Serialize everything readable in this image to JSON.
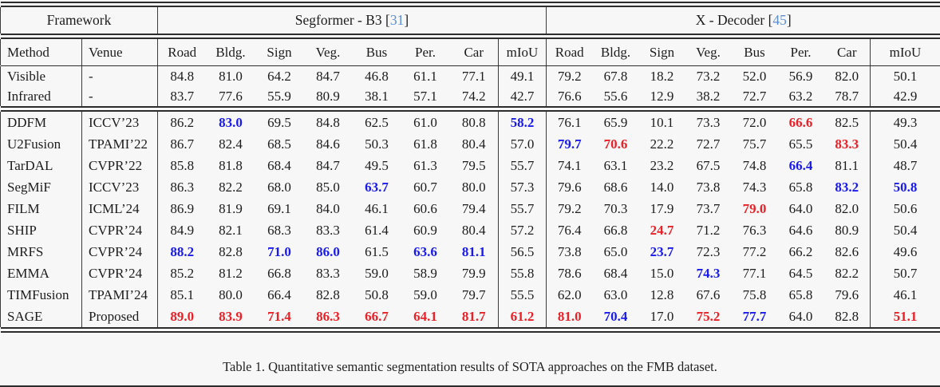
{
  "table": {
    "framework_label": "Framework",
    "sections": [
      {
        "name": "Segformer - B3",
        "cite": "31"
      },
      {
        "name": "X - Decoder",
        "cite": "45"
      }
    ],
    "columns": {
      "method": "Method",
      "venue": "Venue",
      "classes": [
        "Road",
        "Bldg.",
        "Sign",
        "Veg.",
        "Bus",
        "Per.",
        "Car"
      ],
      "miou": "mIoU"
    },
    "colors": {
      "best": "#ea2128",
      "second": "#1a1aee",
      "cite_link": "#5e8ed2"
    },
    "baseline_rows": [
      {
        "method": "Visible",
        "venue": "-",
        "seg": [
          "84.8",
          "81.0",
          "64.2",
          "84.7",
          "46.8",
          "61.1",
          "77.1"
        ],
        "seg_miou": "49.1",
        "xdec": [
          "79.2",
          "67.8",
          "18.2",
          "73.2",
          "52.0",
          "56.9",
          "82.0"
        ],
        "xdec_miou": "50.1"
      },
      {
        "method": "Infrared",
        "venue": "-",
        "seg": [
          "83.7",
          "77.6",
          "55.9",
          "80.9",
          "38.1",
          "57.1",
          "74.2"
        ],
        "seg_miou": "42.7",
        "xdec": [
          "76.6",
          "55.6",
          "12.9",
          "38.2",
          "72.7",
          "63.2",
          "78.7"
        ],
        "xdec_miou": "42.9"
      }
    ],
    "method_rows": [
      {
        "method": "DDFM",
        "venue": "ICCV’23",
        "seg": [
          "86.2",
          "83.0*b",
          "69.5",
          "84.8",
          "62.5",
          "61.0",
          "80.8"
        ],
        "seg_miou": "58.2*b",
        "xdec": [
          "76.1",
          "65.9",
          "10.1",
          "73.3",
          "72.0",
          "66.6*r",
          "82.5"
        ],
        "xdec_miou": "49.3"
      },
      {
        "method": "U2Fusion",
        "venue": "TPAMI’22",
        "seg": [
          "86.7",
          "82.4",
          "68.5",
          "84.6",
          "50.3",
          "61.8",
          "80.4"
        ],
        "seg_miou": "57.0",
        "xdec": [
          "79.7*b",
          "70.6*r",
          "22.2",
          "72.7",
          "75.7",
          "65.5",
          "83.3*r"
        ],
        "xdec_miou": "50.4"
      },
      {
        "method": "TarDAL",
        "venue": "CVPR’22",
        "seg": [
          "85.8",
          "81.8",
          "68.4",
          "84.7",
          "49.5",
          "61.3",
          "79.5"
        ],
        "seg_miou": "55.7",
        "xdec": [
          "74.1",
          "63.1",
          "23.2",
          "67.5",
          "74.8",
          "66.4*b",
          "81.1"
        ],
        "xdec_miou": "48.7"
      },
      {
        "method": "SegMiF",
        "venue": "ICCV’23",
        "seg": [
          "86.3",
          "82.2",
          "68.0",
          "85.0",
          "63.7*b",
          "60.7",
          "80.0"
        ],
        "seg_miou": "57.3",
        "xdec": [
          "79.6",
          "68.6",
          "14.0",
          "73.8",
          "74.3",
          "65.8",
          "83.2*b"
        ],
        "xdec_miou": "50.8*b"
      },
      {
        "method": "FILM",
        "venue": "ICML’24",
        "seg": [
          "86.9",
          "81.9",
          "69.1",
          "84.0",
          "46.1",
          "60.6",
          "79.4"
        ],
        "seg_miou": "55.7",
        "xdec": [
          "79.2",
          "70.3",
          "17.9",
          "73.7",
          "79.0*r",
          "64.0",
          "82.0"
        ],
        "xdec_miou": "50.6"
      },
      {
        "method": "SHIP",
        "venue": "CVPR’24",
        "seg": [
          "84.9",
          "82.1",
          "68.3",
          "83.3",
          "61.4",
          "60.9",
          "80.4"
        ],
        "seg_miou": "57.2",
        "xdec": [
          "76.4",
          "66.8",
          "24.7*r",
          "71.2",
          "76.3",
          "64.6",
          "80.9"
        ],
        "xdec_miou": "50.4"
      },
      {
        "method": "MRFS",
        "venue": "CVPR’24",
        "seg": [
          "88.2*b",
          "82.8",
          "71.0*b",
          "86.0*b",
          "61.5",
          "63.6*b",
          "81.1*b"
        ],
        "seg_miou": "56.5",
        "xdec": [
          "73.8",
          "65.0",
          "23.7*b",
          "72.3",
          "77.2",
          "66.2",
          "82.6"
        ],
        "xdec_miou": "49.6"
      },
      {
        "method": "EMMA",
        "venue": "CVPR’24",
        "seg": [
          "85.2",
          "81.2",
          "66.8",
          "83.3",
          "59.0",
          "58.9",
          "79.9"
        ],
        "seg_miou": "55.8",
        "xdec": [
          "78.6",
          "68.4",
          "15.0",
          "74.3*b",
          "77.1",
          "64.5",
          "82.2"
        ],
        "xdec_miou": "50.7"
      },
      {
        "method": "TIMFusion",
        "venue": "TPAMI’24",
        "seg": [
          "85.1",
          "80.0",
          "66.4",
          "82.8",
          "50.8",
          "59.0",
          "79.7"
        ],
        "seg_miou": "55.5",
        "xdec": [
          "62.0",
          "63.0",
          "12.8",
          "67.6",
          "75.8",
          "65.8",
          "79.6"
        ],
        "xdec_miou": "46.1"
      },
      {
        "method": "SAGE",
        "venue": "Proposed",
        "seg": [
          "89.0*r",
          "83.9*r",
          "71.4*r",
          "86.3*r",
          "66.7*r",
          "64.1*r",
          "81.7*r"
        ],
        "seg_miou": "61.2*r",
        "xdec": [
          "81.0*r",
          "70.4*b",
          "17.0",
          "75.2*r",
          "77.7*b",
          "64.0",
          "82.8"
        ],
        "xdec_miou": "51.1*r"
      }
    ],
    "caption": "Table 1. Quantitative semantic segmentation results of SOTA approaches on the FMB dataset."
  }
}
